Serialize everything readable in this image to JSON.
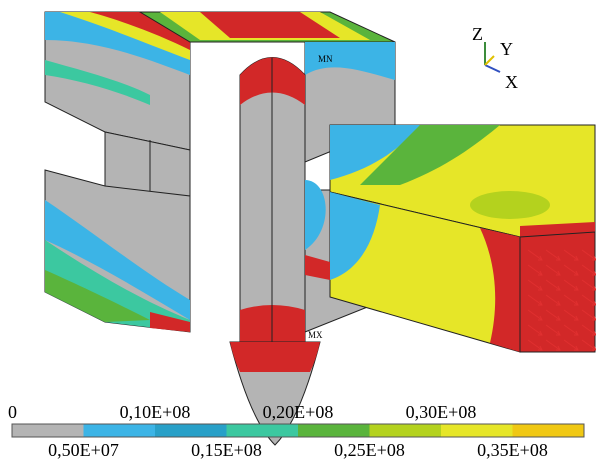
{
  "triad": {
    "z": "Z",
    "y": "Y",
    "x": "X"
  },
  "node_labels": {
    "min": "MN",
    "max": "MX"
  },
  "legend": {
    "colors": [
      "#b4b4b4",
      "#3cb4e6",
      "#28a0c8",
      "#3cc8a0",
      "#5ab43c",
      "#b4d21e",
      "#e6e628",
      "#f0c814"
    ],
    "labels": [
      "0",
      "0,50E+07",
      "0,10E+08",
      "0,15E+08",
      "0,20E+08",
      "0,25E+08",
      "0,30E+08",
      "0,35E+08"
    ]
  }
}
